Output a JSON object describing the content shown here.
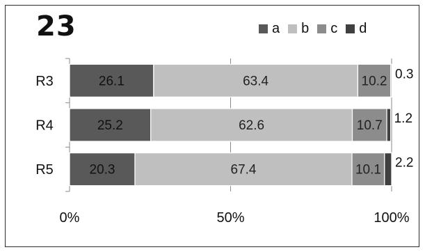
{
  "title": "23",
  "chart_data": {
    "type": "bar",
    "orientation": "horizontal",
    "stacked": "percent",
    "categories": [
      "R3",
      "R4",
      "R5"
    ],
    "series": [
      {
        "name": "a",
        "values": [
          26.1,
          25.2,
          20.3
        ],
        "color": "#595959"
      },
      {
        "name": "b",
        "values": [
          63.4,
          62.6,
          67.4
        ],
        "color": "#bfbfbf"
      },
      {
        "name": "c",
        "values": [
          10.2,
          10.7,
          10.1
        ],
        "color": "#8c8c8c"
      },
      {
        "name": "d",
        "values": [
          0.3,
          1.2,
          2.2
        ],
        "color": "#404040"
      }
    ],
    "xlim": [
      0,
      100
    ],
    "xticks": [
      "0%",
      "50%",
      "100%"
    ],
    "xlabel": "",
    "ylabel": "",
    "grid": true,
    "legend_position": "top-right"
  }
}
